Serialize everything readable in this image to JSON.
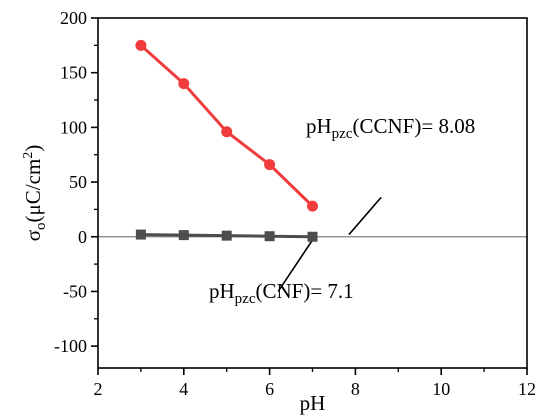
{
  "chart_data": {
    "type": "line",
    "xlabel": "pH",
    "ylabel": {
      "symbol": "σ",
      "sub": "o",
      "pre": "(μC/cm",
      "sup": "2",
      "post": ")"
    },
    "xlim": [
      2,
      12
    ],
    "ylim": [
      -120,
      200
    ],
    "xticks": [
      "2",
      "4",
      "6",
      "8",
      "10",
      "12"
    ],
    "yticks": [
      "200",
      "150",
      "100",
      "50",
      "0",
      "-50",
      "-100"
    ],
    "series": [
      {
        "marker": "circle",
        "color": "#f03c3c",
        "x": [
          3,
          4,
          5,
          6,
          7
        ],
        "y": [
          175,
          140,
          96,
          66,
          28
        ]
      },
      {
        "marker": "square",
        "color": "#4d4d4d",
        "x": [
          3,
          4,
          5,
          6,
          7
        ],
        "y": [
          2,
          1.5,
          1,
          0.5,
          0
        ]
      }
    ],
    "zero_line_color": "#808080",
    "annotations": [
      {
        "id": "ccnf",
        "main": "pH",
        "sub": "pzc",
        "rest": "(CCNF)= 8.08",
        "arrow_from": [
          8.6,
          36
        ],
        "arrow_to": [
          7.85,
          2
        ]
      },
      {
        "id": "cnf",
        "main": "pH",
        "sub": "pzc",
        "rest": "(CNF)= 7.1",
        "arrow_from": [
          6.2,
          -50
        ],
        "arrow_to": [
          7.05,
          0
        ]
      }
    ]
  }
}
